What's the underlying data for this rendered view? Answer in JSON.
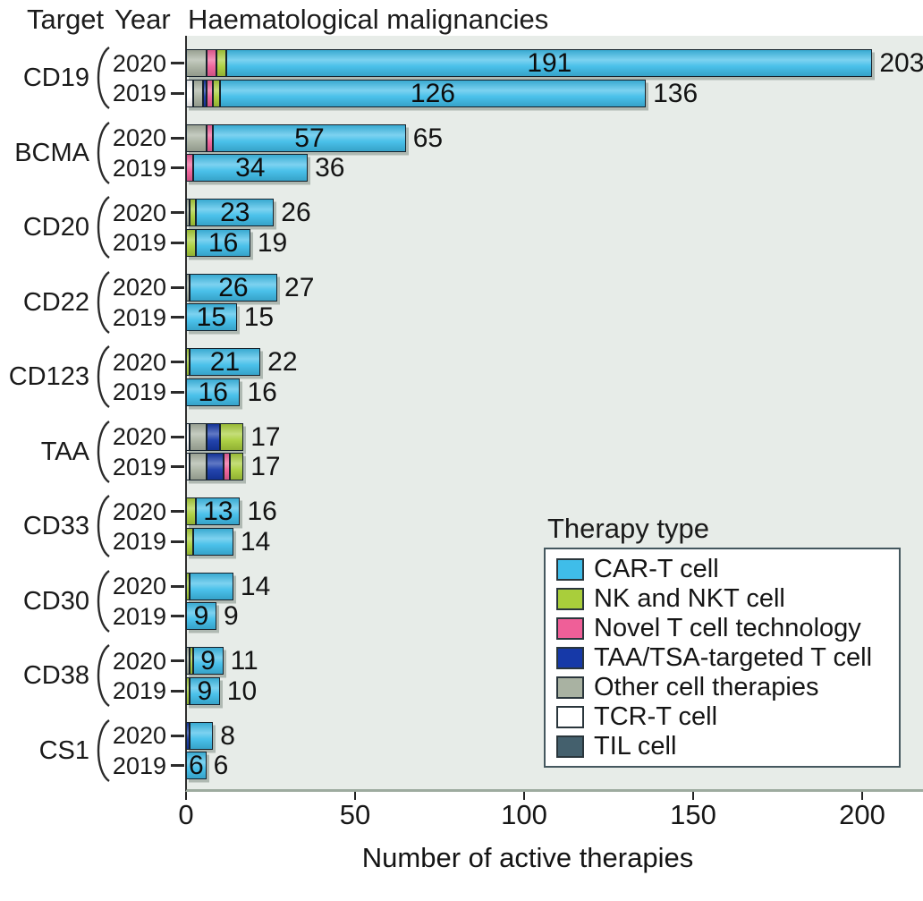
{
  "title": {
    "target_col": "Target",
    "year_col": "Year",
    "chart": "Haematological malignancies"
  },
  "chart_data": {
    "type": "bar",
    "orientation": "horizontal",
    "stacked": true,
    "title": "Haematological malignancies",
    "xlabel": "Number of active therapies",
    "x_ticks": [
      0,
      50,
      100,
      150,
      200
    ],
    "xlim": [
      0,
      218
    ],
    "grid": false,
    "plot_bg": "#e7ece8",
    "legend_position": "inside-bottom-right",
    "legend_title": "Therapy type",
    "legend_entries": [
      "CAR-T cell",
      "NK and NKT cell",
      "Novel T cell technology",
      "TAA/TSA-targeted T cell",
      "Other cell therapies",
      "TCR-T cell",
      "TIL cell"
    ],
    "series_colors": {
      "CAR-T cell": "#3fbde9",
      "NK and NKT cell": "#a9ce3b",
      "Novel T cell technology": "#ef5f98",
      "TAA/TSA-targeted T cell": "#1639a8",
      "Other cell therapies": "#a9b2a2",
      "TCR-T cell": "#ffffff",
      "TIL cell": "#44606d"
    },
    "groups": [
      {
        "target": "CD19",
        "bars": [
          {
            "year": "2020",
            "segments": [
              [
                "Other cell therapies",
                6
              ],
              [
                "Novel T cell technology",
                3
              ],
              [
                "NK and NKT cell",
                3
              ],
              [
                "CAR-T cell",
                191
              ]
            ],
            "inner_label": "191",
            "total_label": "203"
          },
          {
            "year": "2019",
            "segments": [
              [
                "TCR-T cell",
                2
              ],
              [
                "Other cell therapies",
                3
              ],
              [
                "TAA/TSA-targeted T cell",
                1
              ],
              [
                "Novel T cell technology",
                2
              ],
              [
                "NK and NKT cell",
                2
              ],
              [
                "CAR-T cell",
                126
              ]
            ],
            "inner_label": "126",
            "total_label": "136"
          }
        ]
      },
      {
        "target": "BCMA",
        "bars": [
          {
            "year": "2020",
            "segments": [
              [
                "Other cell therapies",
                6
              ],
              [
                "Novel T cell technology",
                2
              ],
              [
                "CAR-T cell",
                57
              ]
            ],
            "inner_label": "57",
            "total_label": "65"
          },
          {
            "year": "2019",
            "segments": [
              [
                "Novel T cell technology",
                2
              ],
              [
                "CAR-T cell",
                34
              ]
            ],
            "inner_label": "34",
            "total_label": "36"
          }
        ]
      },
      {
        "target": "CD20",
        "bars": [
          {
            "year": "2020",
            "segments": [
              [
                "Other cell therapies",
                1
              ],
              [
                "NK and NKT cell",
                2
              ],
              [
                "CAR-T cell",
                23
              ]
            ],
            "inner_label": "23",
            "total_label": "26"
          },
          {
            "year": "2019",
            "segments": [
              [
                "NK and NKT cell",
                3
              ],
              [
                "CAR-T cell",
                16
              ]
            ],
            "inner_label": "16",
            "total_label": "19"
          }
        ]
      },
      {
        "target": "CD22",
        "bars": [
          {
            "year": "2020",
            "segments": [
              [
                "Other cell therapies",
                1
              ],
              [
                "CAR-T cell",
                26
              ]
            ],
            "inner_label": "26",
            "total_label": "27"
          },
          {
            "year": "2019",
            "segments": [
              [
                "CAR-T cell",
                15
              ]
            ],
            "inner_label": "15",
            "total_label": "15"
          }
        ]
      },
      {
        "target": "CD123",
        "bars": [
          {
            "year": "2020",
            "segments": [
              [
                "NK and NKT cell",
                1
              ],
              [
                "CAR-T cell",
                21
              ]
            ],
            "inner_label": "21",
            "total_label": "22"
          },
          {
            "year": "2019",
            "segments": [
              [
                "CAR-T cell",
                16
              ]
            ],
            "inner_label": "16",
            "total_label": "16"
          }
        ]
      },
      {
        "target": "TAA",
        "bars": [
          {
            "year": "2020",
            "segments": [
              [
                "TCR-T cell",
                1
              ],
              [
                "Other cell therapies",
                5
              ],
              [
                "TAA/TSA-targeted T cell",
                4
              ],
              [
                "NK and NKT cell",
                7
              ]
            ],
            "inner_label": null,
            "total_label": "17"
          },
          {
            "year": "2019",
            "segments": [
              [
                "TCR-T cell",
                1
              ],
              [
                "Other cell therapies",
                5
              ],
              [
                "TAA/TSA-targeted T cell",
                5
              ],
              [
                "Novel T cell technology",
                2
              ],
              [
                "NK and NKT cell",
                4
              ]
            ],
            "inner_label": null,
            "total_label": "17"
          }
        ]
      },
      {
        "target": "CD33",
        "bars": [
          {
            "year": "2020",
            "segments": [
              [
                "NK and NKT cell",
                3
              ],
              [
                "CAR-T cell",
                13
              ]
            ],
            "inner_label": "13",
            "total_label": "16"
          },
          {
            "year": "2019",
            "segments": [
              [
                "NK and NKT cell",
                2
              ],
              [
                "CAR-T cell",
                12
              ]
            ],
            "inner_label": null,
            "total_label": "14"
          }
        ]
      },
      {
        "target": "CD30",
        "bars": [
          {
            "year": "2020",
            "segments": [
              [
                "NK and NKT cell",
                1
              ],
              [
                "CAR-T cell",
                13
              ]
            ],
            "inner_label": null,
            "total_label": "14"
          },
          {
            "year": "2019",
            "segments": [
              [
                "CAR-T cell",
                9
              ]
            ],
            "inner_label": "9",
            "total_label": "9"
          }
        ]
      },
      {
        "target": "CD38",
        "bars": [
          {
            "year": "2020",
            "segments": [
              [
                "Other cell therapies",
                1
              ],
              [
                "NK and NKT cell",
                1
              ],
              [
                "CAR-T cell",
                9
              ]
            ],
            "inner_label": "9",
            "total_label": "11"
          },
          {
            "year": "2019",
            "segments": [
              [
                "NK and NKT cell",
                1
              ],
              [
                "CAR-T cell",
                9
              ]
            ],
            "inner_label": "9",
            "total_label": "10"
          }
        ]
      },
      {
        "target": "CS1",
        "bars": [
          {
            "year": "2020",
            "segments": [
              [
                "TAA/TSA-targeted T cell",
                1
              ],
              [
                "CAR-T cell",
                7
              ]
            ],
            "inner_label": null,
            "total_label": "8"
          },
          {
            "year": "2019",
            "segments": [
              [
                "CAR-T cell",
                6
              ]
            ],
            "inner_label": "6",
            "total_label": "6"
          }
        ]
      }
    ]
  }
}
